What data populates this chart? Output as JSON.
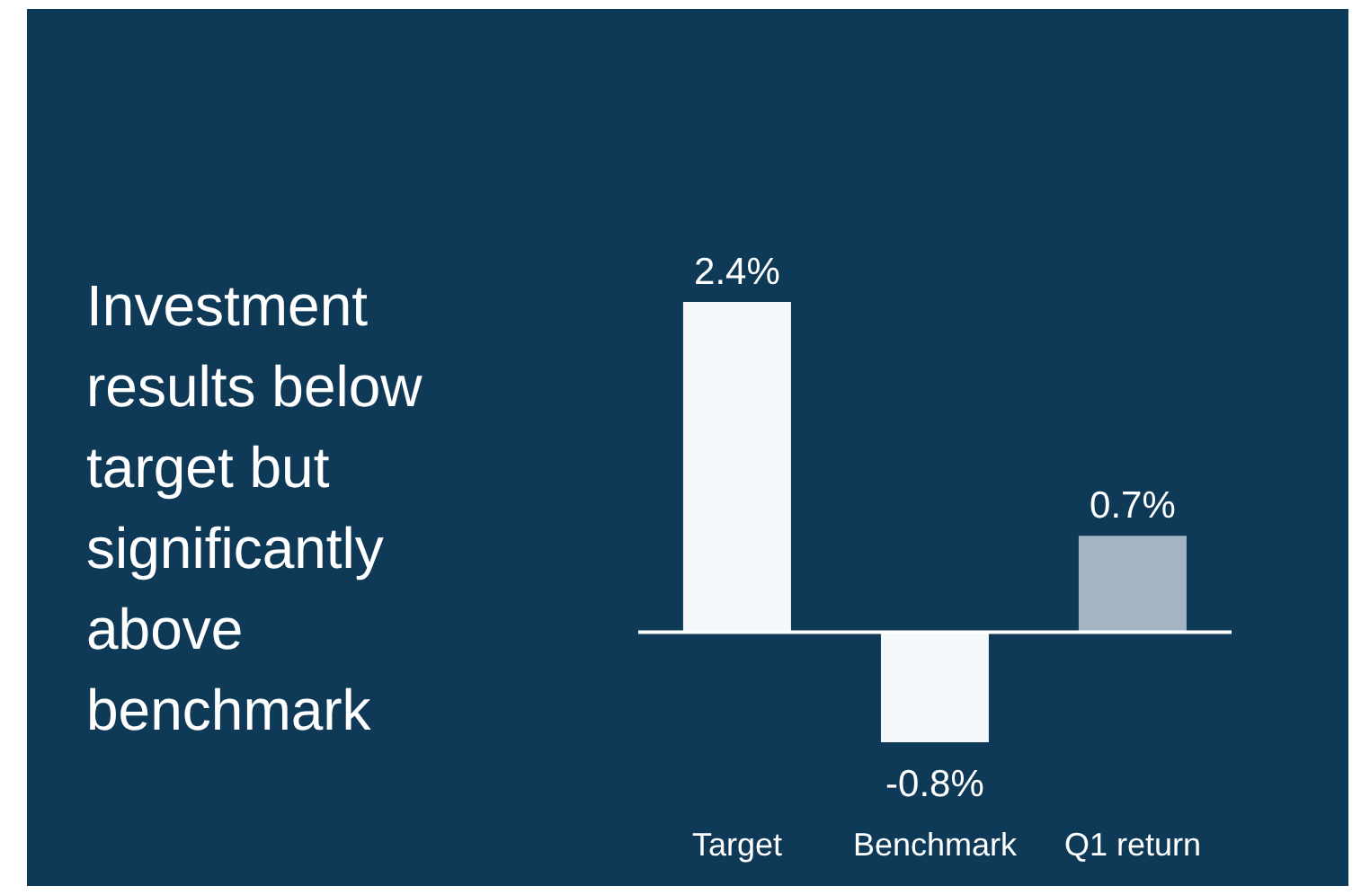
{
  "chart_data": {
    "type": "bar",
    "title": "Investment results below target but significantly above benchmark",
    "categories": [
      "Target",
      "Benchmark",
      "Q1 return"
    ],
    "values": [
      2.4,
      -0.8,
      0.7
    ],
    "colors": [
      "#f4f8fb",
      "#f4f8fb",
      "#a3b5c2"
    ],
    "value_labels": [
      "2.4%",
      "-0.8%",
      "0.7%"
    ]
  }
}
